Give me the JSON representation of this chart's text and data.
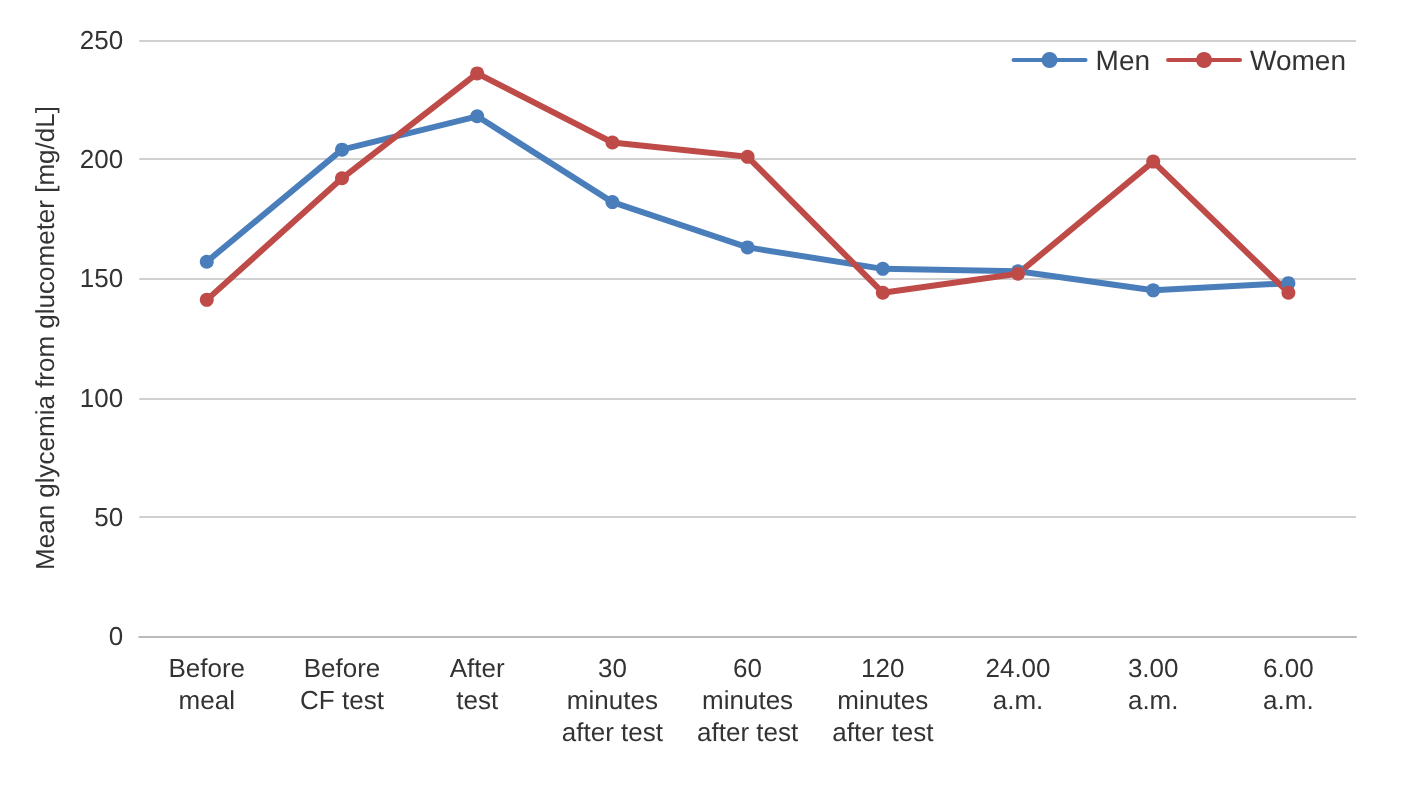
{
  "chart_data": {
    "type": "line",
    "ylabel": "Mean glycemia from glucometer [mg/dL]",
    "categories": [
      "Before\nmeal",
      "Before\nCF test",
      "After\ntest",
      "30\nminutes\nafter test",
      "60\nminutes\nafter test",
      "120\nminutes\nafter test",
      "24.00\na.m.",
      "3.00\na.m.",
      "6.00\na.m."
    ],
    "series": [
      {
        "name": "Men",
        "color": "#4a7ebb",
        "values": [
          157,
          204,
          218,
          182,
          163,
          154,
          153,
          145,
          148
        ]
      },
      {
        "name": "Women",
        "color": "#be4b48",
        "values": [
          141,
          192,
          236,
          207,
          201,
          144,
          152,
          199,
          144
        ]
      }
    ],
    "ylim": [
      0,
      250
    ],
    "yticks": [
      0,
      50,
      100,
      150,
      200,
      250
    ],
    "grid": "y",
    "legend": "top right",
    "marker": "circle",
    "line_style": "solid"
  }
}
